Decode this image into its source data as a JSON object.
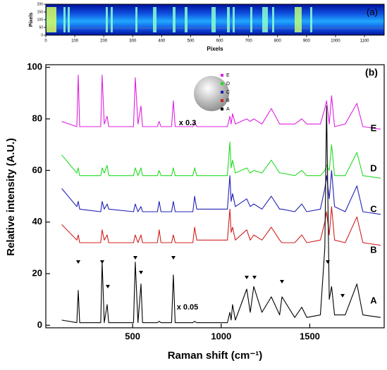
{
  "chart_data": [
    {
      "type": "heatmap",
      "title": "(a)",
      "x_label": "Pixels",
      "y_label": "Pixels",
      "xlim": [
        0,
        1168
      ],
      "xticks": [
        0,
        100,
        200,
        300,
        400,
        500,
        600,
        700,
        800,
        900,
        1000,
        1100
      ],
      "ylim": [
        0,
        200
      ],
      "yticks": [
        0,
        50,
        100,
        150,
        200
      ]
    },
    {
      "type": "line",
      "title": "(b)",
      "x_label": "Raman shift (cm⁻¹)",
      "y_label": "Relative intensity (A.U.)",
      "xlim": [
        10,
        1920
      ],
      "xticks": [
        500,
        1000,
        1500
      ],
      "ylim": [
        -1,
        101
      ],
      "yticks": [
        0,
        20,
        40,
        60,
        80,
        100
      ],
      "annotations": [
        "x 0.3",
        "x 0.05"
      ],
      "x": [
        100,
        185,
        193,
        201,
        320,
        328,
        340,
        356,
        365,
        505,
        515,
        530,
        547,
        556,
        640,
        650,
        660,
        720,
        730,
        740,
        840,
        850,
        862,
        1035,
        1049,
        1056,
        1064,
        1080,
        1144,
        1164,
        1184,
        1230,
        1283,
        1330,
        1343,
        1415,
        1455,
        1483,
        1560,
        1585,
        1595,
        1610,
        1623,
        1640,
        1700,
        1766,
        1800,
        1900
      ],
      "series": [
        {
          "name": "E",
          "color": "#e020e0",
          "values": [
            79,
            77,
            97,
            77,
            77,
            97,
            78,
            81,
            77,
            77,
            96,
            78,
            85,
            77,
            77,
            79,
            77,
            77,
            87,
            77,
            77,
            79,
            77,
            77,
            81,
            78,
            82,
            78,
            80,
            79,
            80,
            78,
            84,
            78,
            78,
            78,
            80,
            78,
            78,
            84,
            87,
            78,
            89,
            77,
            78,
            86,
            77,
            76
          ]
        },
        {
          "name": "D",
          "color": "#22dd22",
          "values": [
            66,
            59,
            61,
            58,
            58,
            61,
            59,
            62,
            58,
            58,
            61,
            58,
            61,
            58,
            58,
            60,
            58,
            58,
            61,
            58,
            58,
            61,
            58,
            58,
            71,
            61,
            64,
            59,
            61,
            59,
            60,
            59,
            64,
            59,
            59,
            58,
            60,
            58,
            58,
            60,
            62,
            60,
            70,
            58,
            58,
            67,
            58,
            57
          ]
        },
        {
          "name": "C",
          "color": "#2020b8",
          "values": [
            53,
            46,
            48,
            45,
            44,
            48,
            45,
            47,
            45,
            44,
            47,
            44,
            46,
            44,
            44,
            48,
            44,
            44,
            48,
            44,
            44,
            50,
            45,
            45,
            58,
            48,
            51,
            46,
            49,
            46,
            47,
            45,
            50,
            45,
            45,
            44,
            47,
            44,
            45,
            53,
            58,
            49,
            60,
            46,
            44,
            54,
            44,
            43
          ]
        },
        {
          "name": "B",
          "color": "#d02020",
          "values": [
            39,
            33,
            35,
            32,
            32,
            37,
            33,
            35,
            32,
            32,
            35,
            32,
            35,
            32,
            32,
            37,
            32,
            32,
            35,
            32,
            32,
            38,
            33,
            33,
            45,
            36,
            38,
            33,
            37,
            33,
            35,
            33,
            38,
            33,
            32,
            32,
            35,
            32,
            33,
            40,
            44,
            35,
            46,
            33,
            32,
            42,
            32,
            31
          ]
        },
        {
          "name": "A",
          "color": "#000000",
          "values": [
            2,
            1,
            13.5,
            1,
            1,
            24.5,
            1,
            8,
            1,
            1,
            24.5,
            1,
            16,
            1,
            1,
            1.5,
            1,
            1,
            19.5,
            1,
            1,
            1.5,
            1,
            1,
            5,
            2,
            8,
            2,
            14,
            5,
            15,
            5,
            11,
            4,
            11,
            3,
            7,
            3,
            4,
            30,
            85,
            10,
            15,
            4,
            4,
            16,
            4,
            3
          ]
        }
      ]
    }
  ]
}
